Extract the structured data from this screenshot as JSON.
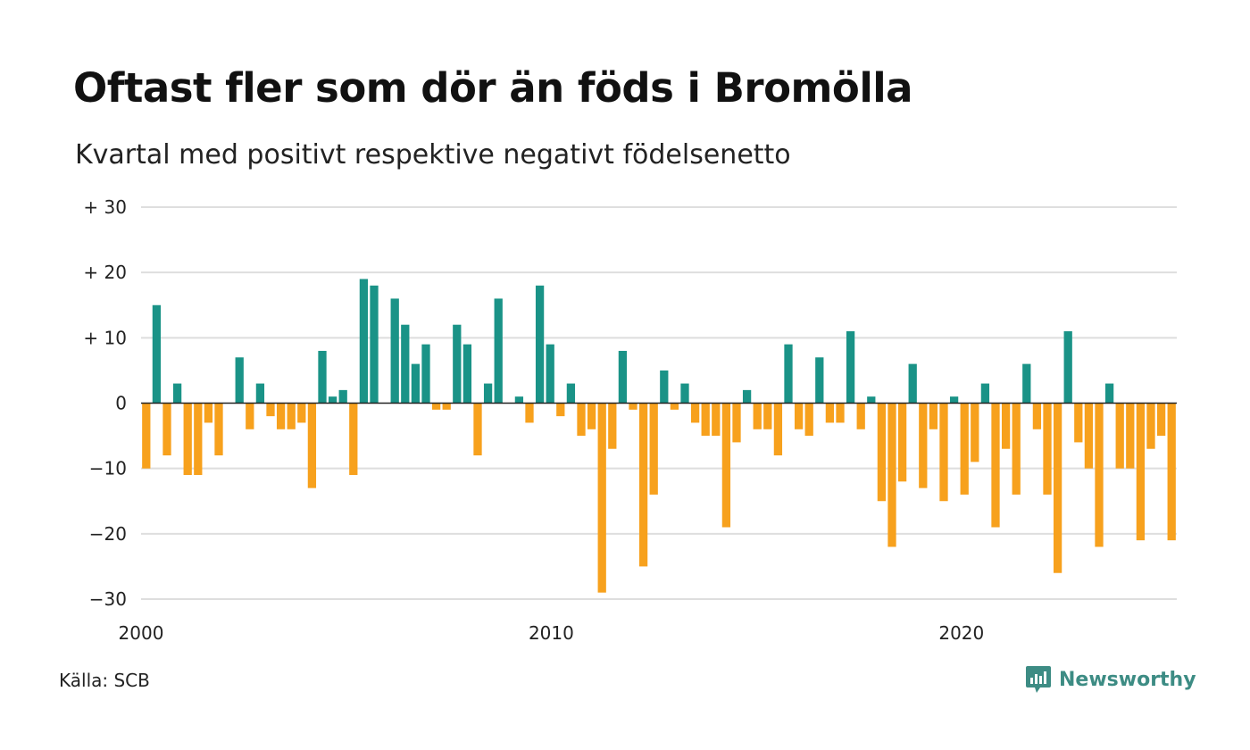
{
  "title": "Oftast fler som dör än föds i Bromölla",
  "subtitle": "Kvartal med positivt respektive negativt födelsenetto",
  "source": "Källa: SCB",
  "brand": {
    "name": "Newsworthy",
    "color": "#3d8c84",
    "logo_icon": "newsworthy-logo-icon"
  },
  "colors": {
    "positive": "#1a9387",
    "negative": "#f7a11d",
    "grid": "#dedede",
    "zero_line": "#222222"
  },
  "chart_data": {
    "type": "bar",
    "title": "Oftast fler som dör än föds i Bromölla",
    "subtitle": "Kvartal med positivt respektive negativt födelsenetto",
    "xlabel": "",
    "ylabel": "",
    "xlim": [
      2000,
      2025.25
    ],
    "ylim": [
      -30,
      30
    ],
    "y_ticks": [
      30,
      20,
      10,
      0,
      -10,
      -20,
      -30
    ],
    "y_tick_labels": [
      "+ 30",
      "+ 20",
      "+ 10",
      "0",
      "−10",
      "−20",
      "−30"
    ],
    "x_ticks": [
      2000,
      2010,
      2020
    ],
    "x_tick_labels": [
      "2000",
      "2010",
      "2020"
    ],
    "grid": true,
    "legend": "none",
    "start_period": "2000 Q1",
    "frequency": "quarterly",
    "values": [
      -10,
      15,
      -8,
      3,
      -11,
      -11,
      -3,
      -8,
      0,
      7,
      -4,
      3,
      -2,
      -4,
      -4,
      -3,
      -13,
      8,
      1,
      2,
      -11,
      19,
      18,
      0,
      16,
      12,
      6,
      9,
      -1,
      -1,
      12,
      9,
      -8,
      3,
      16,
      0,
      1,
      -3,
      18,
      9,
      -2,
      3,
      -5,
      -4,
      -29,
      -7,
      8,
      -1,
      -25,
      -14,
      5,
      -1,
      3,
      -3,
      -5,
      -5,
      -19,
      -6,
      2,
      -4,
      -4,
      -8,
      9,
      -4,
      -5,
      7,
      -3,
      -3,
      11,
      -4,
      1,
      -15,
      -22,
      -12,
      6,
      -13,
      -4,
      -15,
      1,
      -14,
      -9,
      3,
      -19,
      -7,
      -14,
      6,
      -4,
      -14,
      -26,
      11,
      -6,
      -10,
      -22,
      3,
      -10,
      -10,
      -21,
      -7,
      -5,
      -21
    ]
  }
}
